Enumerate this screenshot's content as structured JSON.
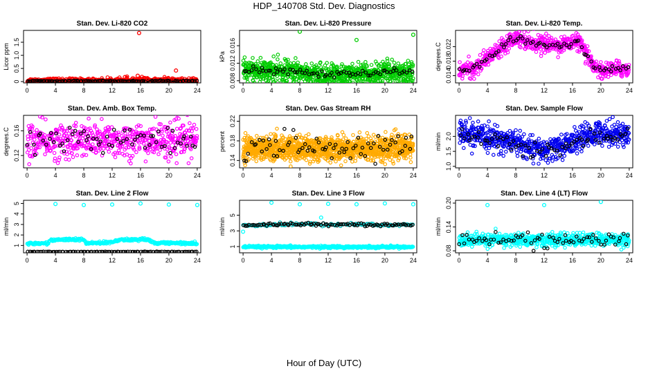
{
  "figure": {
    "title": "HDP_140708  Std. Dev. Diagnostics",
    "xlabel": "Hour of Day (UTC)"
  },
  "chart_data": [
    {
      "type": "scatter",
      "title": "Stan. Dev. Li-820 CO2",
      "ylabel": "Licor ppm",
      "x_ticks": [
        0,
        4,
        8,
        12,
        16,
        20,
        24
      ],
      "y_ticks": [
        0,
        0.5,
        1.0,
        1.5
      ],
      "y_tick_labels": [
        "0",
        "0.5",
        "1.0",
        "1.5"
      ],
      "xlim": [
        -0.5,
        24.5
      ],
      "ylim": [
        -0.05,
        1.95
      ],
      "series": [
        {
          "color": "#ff0000",
          "baseline": [
            [
              0,
              0.04
            ],
            [
              4,
              0.05
            ],
            [
              8,
              0.04
            ],
            [
              12,
              0.05
            ],
            [
              16,
              0.06
            ],
            [
              20,
              0.05
            ],
            [
              24,
              0.04
            ]
          ],
          "noise": 0.04,
          "count": 420
        },
        {
          "color": "#000000",
          "baseline": [
            [
              0,
              0.02
            ],
            [
              24,
              0.02
            ]
          ],
          "noise": 0.01,
          "count": 110
        }
      ],
      "outliers": [
        {
          "x": 15.8,
          "y": 1.85,
          "color": "#ff0000"
        },
        {
          "x": 13.8,
          "y": 0.17,
          "color": "#ff0000"
        },
        {
          "x": 14.1,
          "y": 0.19,
          "color": "#ff0000"
        },
        {
          "x": 15.6,
          "y": 0.22,
          "color": "#ff0000"
        },
        {
          "x": 16.2,
          "y": 0.18,
          "color": "#ff0000"
        },
        {
          "x": 17.0,
          "y": 0.11,
          "color": "#ff0000"
        },
        {
          "x": 21.0,
          "y": 0.42,
          "color": "#ff0000"
        },
        {
          "x": 20.5,
          "y": 0.12,
          "color": "#ff0000"
        }
      ]
    },
    {
      "type": "scatter",
      "title": "Stan. Dev. Li-820 Pressure",
      "ylabel": "kPa",
      "x_ticks": [
        0,
        4,
        8,
        12,
        16,
        20,
        24
      ],
      "y_ticks": [
        0.008,
        0.012,
        0.016
      ],
      "y_tick_labels": [
        "0.008",
        "0.012",
        "0.016"
      ],
      "xlim": [
        -0.5,
        24.5
      ],
      "ylim": [
        0.0075,
        0.0195
      ],
      "series": [
        {
          "color": "#00cc00",
          "baseline": [
            [
              0,
              0.0103
            ],
            [
              4,
              0.0102
            ],
            [
              8,
              0.0101
            ],
            [
              12,
              0.0092
            ],
            [
              14,
              0.0091
            ],
            [
              16,
              0.0094
            ],
            [
              20,
              0.0099
            ],
            [
              24,
              0.0101
            ]
          ],
          "noise": 0.0012,
          "count": 900
        },
        {
          "color": "#000000",
          "baseline": [
            [
              0,
              0.0103
            ],
            [
              4,
              0.0102
            ],
            [
              8,
              0.0101
            ],
            [
              12,
              0.0093
            ],
            [
              16,
              0.0095
            ],
            [
              20,
              0.0099
            ],
            [
              24,
              0.0101
            ]
          ],
          "noise": 0.0004,
          "count": 70
        }
      ],
      "outliers": [
        {
          "x": 8.0,
          "y": 0.0192,
          "color": "#00cc00"
        },
        {
          "x": 16.0,
          "y": 0.0173,
          "color": "#00cc00"
        },
        {
          "x": 24.0,
          "y": 0.0185,
          "color": "#00cc00"
        }
      ]
    },
    {
      "type": "scatter",
      "title": "Stan. Dev. Li-820 Temp.",
      "ylabel": "degrees.C",
      "x_ticks": [
        0,
        4,
        8,
        12,
        16,
        20,
        24
      ],
      "y_ticks": [
        0.014,
        0.018,
        0.022
      ],
      "y_tick_labels": [
        "0.014",
        "0.018",
        "0.022"
      ],
      "xlim": [
        -0.5,
        24.5
      ],
      "ylim": [
        0.012,
        0.0265
      ],
      "series": [
        {
          "color": "#ff00ff",
          "baseline": [
            [
              0,
              0.0155
            ],
            [
              2,
              0.0158
            ],
            [
              4,
              0.0188
            ],
            [
              6,
              0.0222
            ],
            [
              8,
              0.0248
            ],
            [
              10,
              0.0232
            ],
            [
              12,
              0.0228
            ],
            [
              14,
              0.0224
            ],
            [
              16,
              0.0232
            ],
            [
              17,
              0.0234
            ],
            [
              18,
              0.0192
            ],
            [
              20,
              0.0152
            ],
            [
              22,
              0.0158
            ],
            [
              24,
              0.0158
            ]
          ],
          "noise": 0.0011,
          "count": 650
        },
        {
          "color": "#000000",
          "baseline": [
            [
              0,
              0.0155
            ],
            [
              2,
              0.0158
            ],
            [
              4,
              0.0188
            ],
            [
              6,
              0.0222
            ],
            [
              8,
              0.0245
            ],
            [
              10,
              0.023
            ],
            [
              12,
              0.0227
            ],
            [
              14,
              0.0223
            ],
            [
              16,
              0.023
            ],
            [
              17,
              0.0232
            ],
            [
              18,
              0.019
            ],
            [
              20,
              0.0153
            ],
            [
              22,
              0.0158
            ],
            [
              24,
              0.0158
            ]
          ],
          "noise": 0.0005,
          "count": 70
        }
      ],
      "outliers": []
    },
    {
      "type": "scatter",
      "title": "Stan. Dev. Amb. Box Temp.",
      "ylabel": "degrees.C",
      "x_ticks": [
        0,
        4,
        8,
        12,
        16,
        20,
        24
      ],
      "y_ticks": [
        0.12,
        0.16
      ],
      "y_tick_labels": [
        "0.12",
        "0.16"
      ],
      "xlim": [
        -0.5,
        24.5
      ],
      "ylim": [
        0.1,
        0.185
      ],
      "series": [
        {
          "color": "#ff00ff",
          "baseline": [
            [
              0,
              0.143
            ],
            [
              12,
              0.144
            ],
            [
              24,
              0.145
            ]
          ],
          "noise": 0.014,
          "count": 600
        },
        {
          "color": "#000000",
          "baseline": [
            [
              0,
              0.144
            ],
            [
              12,
              0.146
            ],
            [
              24,
              0.146
            ]
          ],
          "noise": 0.011,
          "count": 65
        }
      ],
      "outliers": []
    },
    {
      "type": "scatter",
      "title": "Stan. Dev. Gas Stream RH",
      "ylabel": "percent",
      "x_ticks": [
        0,
        4,
        8,
        12,
        16,
        20,
        24
      ],
      "y_ticks": [
        0.14,
        0.18,
        0.22
      ],
      "y_tick_labels": [
        "0.14",
        "0.18",
        "0.22"
      ],
      "xlim": [
        -0.5,
        24.5
      ],
      "ylim": [
        0.125,
        0.232
      ],
      "series": [
        {
          "color": "#ffaa00",
          "baseline": [
            [
              0,
              0.166
            ],
            [
              12,
              0.164
            ],
            [
              24,
              0.166
            ]
          ],
          "noise": 0.012,
          "count": 1300
        },
        {
          "color": "#000000",
          "baseline": [
            [
              0,
              0.17
            ],
            [
              12,
              0.168
            ],
            [
              24,
              0.172
            ]
          ],
          "noise": 0.013,
          "count": 70
        }
      ],
      "outliers": []
    },
    {
      "type": "scatter",
      "title": "Stan. Dev. Sample Flow",
      "ylabel": "ml/min",
      "x_ticks": [
        0,
        4,
        8,
        12,
        16,
        20,
        24
      ],
      "y_ticks": [
        1.0,
        1.5,
        2.0
      ],
      "y_tick_labels": [
        "1.0",
        "1.5",
        "2.0"
      ],
      "xlim": [
        -0.5,
        24.5
      ],
      "ylim": [
        0.95,
        2.7
      ],
      "series": [
        {
          "color": "#0000ee",
          "baseline": [
            [
              0,
              2.1
            ],
            [
              4,
              1.95
            ],
            [
              8,
              1.8
            ],
            [
              10,
              1.6
            ],
            [
              12,
              1.5
            ],
            [
              14,
              1.65
            ],
            [
              16,
              1.8
            ],
            [
              18,
              2.0
            ],
            [
              20,
              2.15
            ],
            [
              24,
              2.05
            ]
          ],
          "noise": 0.2,
          "count": 700
        },
        {
          "color": "#000000",
          "baseline": [
            [
              0,
              2.05
            ],
            [
              4,
              1.9
            ],
            [
              8,
              1.75
            ],
            [
              10,
              1.55
            ],
            [
              12,
              1.5
            ],
            [
              14,
              1.6
            ],
            [
              16,
              1.8
            ],
            [
              20,
              2.0
            ],
            [
              24,
              2.0
            ]
          ],
          "noise": 0.15,
          "count": 70
        }
      ],
      "outliers": []
    },
    {
      "type": "scatter",
      "title": "Stan. Dev. Line 2 Flow",
      "ylabel": "ml/min",
      "x_ticks": [
        0,
        4,
        8,
        12,
        16,
        20,
        24
      ],
      "y_ticks": [
        1,
        2,
        3,
        4,
        5
      ],
      "y_tick_labels": [
        "1",
        "2",
        "3",
        "4",
        "5"
      ],
      "xlim": [
        -0.5,
        24.5
      ],
      "ylim": [
        0.3,
        5.3
      ],
      "series": [
        {
          "color": "#00ffff",
          "baseline": [
            [
              0,
              1.2
            ],
            [
              3,
              1.2
            ],
            [
              3.3,
              1.55
            ],
            [
              8,
              1.55
            ],
            [
              8.3,
              1.2
            ],
            [
              12,
              1.3
            ],
            [
              13,
              1.55
            ],
            [
              17,
              1.55
            ],
            [
              18,
              1.25
            ],
            [
              24,
              1.2
            ]
          ],
          "noise": 0.06,
          "count": 320
        },
        {
          "color": "#000000",
          "baseline": [
            [
              0,
              0.4
            ],
            [
              24,
              0.4
            ]
          ],
          "noise": 0.01,
          "count": 95
        }
      ],
      "outliers": [
        {
          "x": 4.0,
          "y": 4.95,
          "color": "#00ffff"
        },
        {
          "x": 8.0,
          "y": 4.85,
          "color": "#00ffff"
        },
        {
          "x": 12.0,
          "y": 4.9,
          "color": "#00ffff"
        },
        {
          "x": 16.0,
          "y": 5.0,
          "color": "#00ffff"
        },
        {
          "x": 20.0,
          "y": 4.9,
          "color": "#00ffff"
        },
        {
          "x": 24.0,
          "y": 4.85,
          "color": "#00ffff"
        }
      ]
    },
    {
      "type": "scatter",
      "title": "Stan. Dev. Line 3 Flow",
      "ylabel": "ml/min",
      "x_ticks": [
        0,
        4,
        8,
        12,
        16,
        20,
        24
      ],
      "y_ticks": [
        1,
        3,
        5
      ],
      "y_tick_labels": [
        "1",
        "3",
        "5"
      ],
      "xlim": [
        -0.5,
        24.5
      ],
      "ylim": [
        0.2,
        6.9
      ],
      "series": [
        {
          "color": "#00ffff",
          "baseline": [
            [
              0,
              0.95
            ],
            [
              24,
              0.95
            ]
          ],
          "noise": 0.07,
          "count": 480
        },
        {
          "color": "#00bfbf",
          "baseline": [
            [
              0,
              3.7
            ],
            [
              4,
              3.8
            ],
            [
              8,
              3.85
            ],
            [
              12,
              3.8
            ],
            [
              16,
              3.85
            ],
            [
              20,
              3.75
            ],
            [
              24,
              3.75
            ]
          ],
          "noise": 0.1,
          "count": 130
        },
        {
          "color": "#000000",
          "baseline": [
            [
              0,
              3.7
            ],
            [
              4,
              3.8
            ],
            [
              8,
              3.85
            ],
            [
              12,
              3.8
            ],
            [
              16,
              3.85
            ],
            [
              20,
              3.75
            ],
            [
              24,
              3.75
            ]
          ],
          "noise": 0.08,
          "count": 90
        }
      ],
      "outliers": [
        {
          "x": 4.0,
          "y": 6.6,
          "color": "#00ffff"
        },
        {
          "x": 8.0,
          "y": 6.4,
          "color": "#00ffff"
        },
        {
          "x": 12.0,
          "y": 6.45,
          "color": "#00ffff"
        },
        {
          "x": 16.0,
          "y": 6.4,
          "color": "#00ffff"
        },
        {
          "x": 20.0,
          "y": 6.5,
          "color": "#00ffff"
        },
        {
          "x": 24.0,
          "y": 6.4,
          "color": "#00ffff"
        },
        {
          "x": 0.0,
          "y": 2.9,
          "color": "#00ffff"
        },
        {
          "x": 11.0,
          "y": 4.7,
          "color": "#00ffff"
        }
      ]
    },
    {
      "type": "scatter",
      "title": "Stan. Dev. Line 4 (LT) Flow",
      "ylabel": "ml/min",
      "x_ticks": [
        0,
        4,
        8,
        12,
        16,
        20,
        24
      ],
      "y_ticks": [
        0.08,
        0.14,
        0.2
      ],
      "y_tick_labels": [
        "0.08",
        "0.14",
        "0.20"
      ],
      "xlim": [
        -0.5,
        24.5
      ],
      "ylim": [
        0.075,
        0.207
      ],
      "series": [
        {
          "color": "#00ffff",
          "baseline": [
            [
              0,
              0.107
            ],
            [
              24,
              0.108
            ]
          ],
          "noise": 0.008,
          "count": 700
        },
        {
          "color": "#000000",
          "baseline": [
            [
              0,
              0.107
            ],
            [
              24,
              0.108
            ]
          ],
          "noise": 0.009,
          "count": 70
        }
      ],
      "outliers": [
        {
          "x": 4.0,
          "y": 0.195,
          "color": "#00ffff"
        },
        {
          "x": 12.0,
          "y": 0.195,
          "color": "#00ffff"
        },
        {
          "x": 20.0,
          "y": 0.203,
          "color": "#00ffff"
        }
      ]
    }
  ]
}
